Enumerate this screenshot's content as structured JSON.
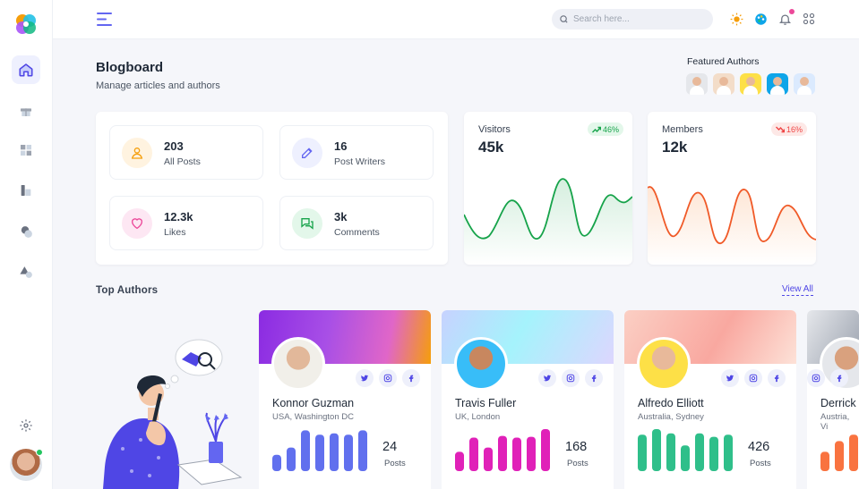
{
  "topbar": {
    "search_placeholder": "Search here..."
  },
  "header": {
    "title": "Blogboard",
    "subtitle": "Manage articles and authors"
  },
  "featured": {
    "title": "Featured Authors",
    "avatar_colors": [
      "#e5e7eb",
      "#f3ddc9",
      "#fde047",
      "#0ea5e9",
      "#dbeafe"
    ]
  },
  "stats": [
    {
      "value": "203",
      "label": "All Posts",
      "icon": "user-icon",
      "color": "#f59e0b",
      "bg": "#fff3e0"
    },
    {
      "value": "16",
      "label": "Post Writers",
      "icon": "edit-icon",
      "color": "#6366f1",
      "bg": "#eef0fe"
    },
    {
      "value": "12.3k",
      "label": "Likes",
      "icon": "heart-icon",
      "color": "#ec4899",
      "bg": "#fde7f3"
    },
    {
      "value": "3k",
      "label": "Comments",
      "icon": "comments-icon",
      "color": "#16a34a",
      "bg": "#e3f7ea"
    }
  ],
  "visitors": {
    "title": "Visitors",
    "value": "45k",
    "change": "46%",
    "color": "#16a34a"
  },
  "members": {
    "title": "Members",
    "value": "12k",
    "change": "16%",
    "color": "#ef4444"
  },
  "top_authors": {
    "title": "Top Authors",
    "view_all": "View All",
    "authors": [
      {
        "name": "Konnor Guzman",
        "location": "USA, Washington DC",
        "posts": "24",
        "posts_label": "Posts",
        "bar_color": "#6170ee",
        "bars": [
          0.38,
          0.55,
          0.95,
          0.85,
          0.88,
          0.85,
          0.95
        ]
      },
      {
        "name": "Travis Fuller",
        "location": "UK, London",
        "posts": "168",
        "posts_label": "Posts",
        "bar_color": "#e021b8",
        "bars": [
          0.45,
          0.78,
          0.55,
          0.82,
          0.78,
          0.8,
          0.98
        ]
      },
      {
        "name": "Alfredo Elliott",
        "location": "Australia, Sydney",
        "posts": "426",
        "posts_label": "Posts",
        "bar_color": "#2fbf8a",
        "bars": [
          0.85,
          0.98,
          0.88,
          0.6,
          0.88,
          0.8,
          0.85
        ]
      },
      {
        "name": "Derrick",
        "location": "Austria, Vi",
        "posts": "",
        "posts_label": "",
        "bar_color": "#f97340",
        "bars": [
          0.45,
          0.7,
          0.85
        ]
      }
    ]
  }
}
